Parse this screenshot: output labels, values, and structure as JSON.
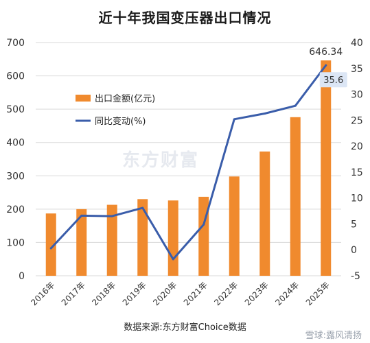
{
  "title": "近十年我国变压器出口情况",
  "source_note": "数据来源:东方财富Choice数据",
  "watermark": "东方财富",
  "corner_watermark": "雪球:露风清扬",
  "colors": {
    "bar": "#F08A2E",
    "line": "#3A5DAA",
    "grid": "#D9D9D9",
    "callout_bg": "#DCE6F5"
  },
  "chart_data": {
    "type": "bar+line",
    "categories": [
      "2016年",
      "2017年",
      "2018年",
      "2019年",
      "2020年",
      "2021年",
      "2022年",
      "2023年",
      "2024年",
      "2025年"
    ],
    "series": [
      {
        "name": "出口金额(亿元)",
        "type": "bar",
        "axis": "left",
        "values": [
          187,
          200,
          213,
          230,
          226,
          237,
          298,
          373,
          476,
          646.34
        ]
      },
      {
        "name": "同比变动(%)",
        "type": "line",
        "axis": "right",
        "values": [
          0.3,
          6.6,
          6.5,
          8.1,
          -1.8,
          4.9,
          25.2,
          26.3,
          27.8,
          35.6
        ]
      }
    ],
    "y_left": {
      "min": 0,
      "max": 700,
      "ticks": [
        0,
        100,
        200,
        300,
        400,
        500,
        600,
        700
      ]
    },
    "y_right": {
      "min": -5,
      "max": 40,
      "ticks": [
        -5,
        0,
        5,
        10,
        15,
        20,
        25,
        30,
        35,
        40
      ]
    },
    "grid": true,
    "legend": {
      "position": "upper-left"
    },
    "annotations": [
      {
        "series": 0,
        "index": 9,
        "text": "646.34"
      },
      {
        "series": 1,
        "index": 9,
        "text": "35.6"
      }
    ]
  }
}
